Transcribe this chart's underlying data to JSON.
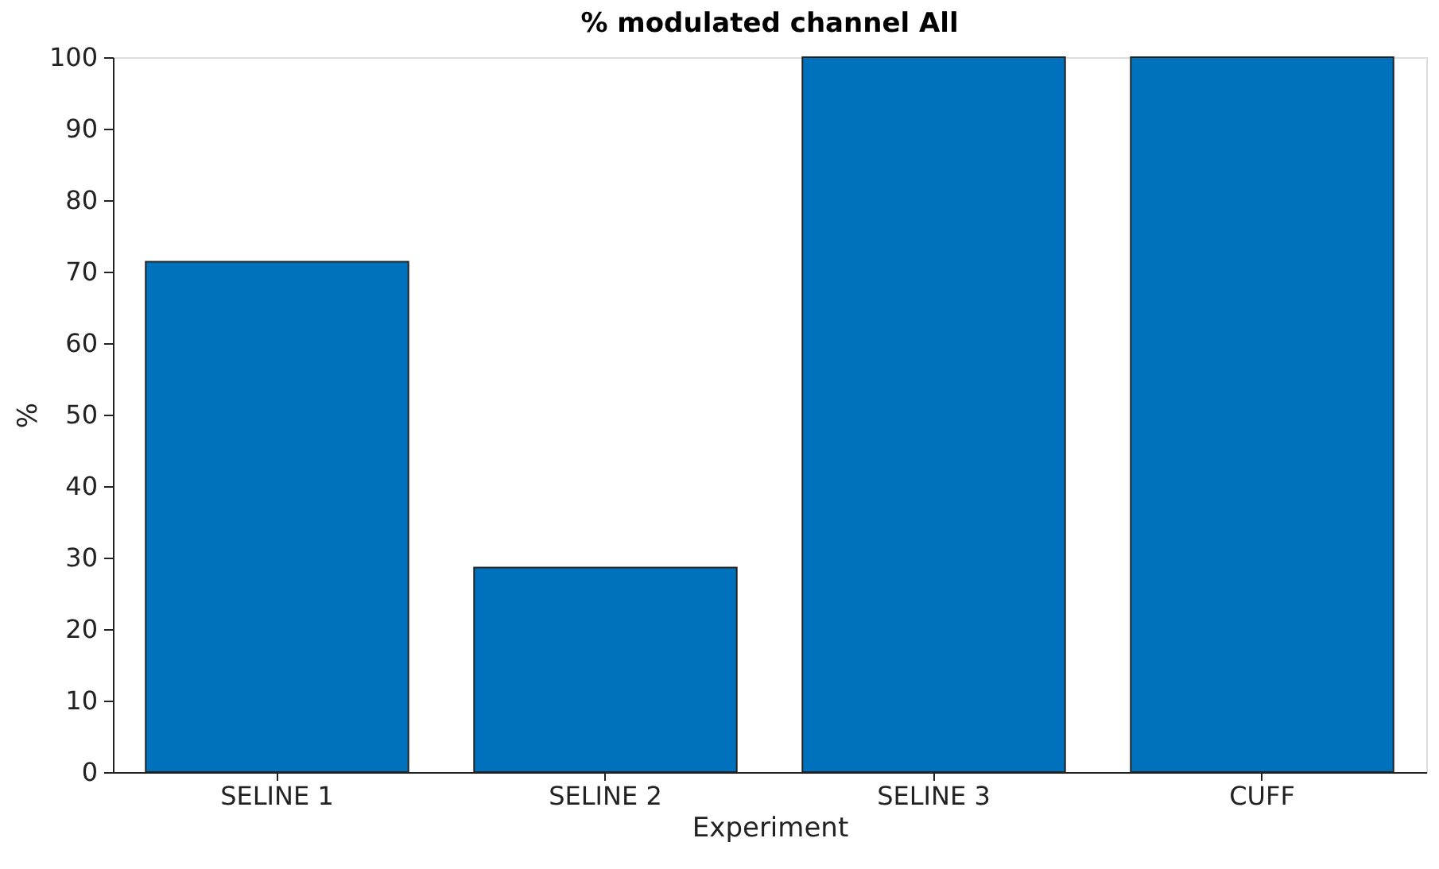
{
  "chart_data": {
    "type": "bar",
    "title": "% modulated channel All",
    "xlabel": "Experiment",
    "ylabel": "%",
    "categories": [
      "SELINE 1",
      "SELINE 2",
      "SELINE 3",
      "CUFF"
    ],
    "values": [
      71.4,
      28.6,
      100,
      100
    ],
    "color": "#0072bd",
    "ylim": [
      0,
      100
    ],
    "yticks": [
      0,
      10,
      20,
      30,
      40,
      50,
      60,
      70,
      80,
      90,
      100
    ],
    "grid": false
  }
}
